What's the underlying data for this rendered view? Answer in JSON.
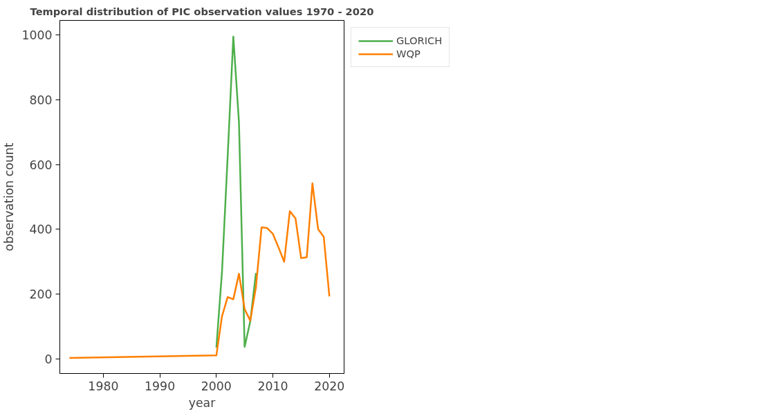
{
  "chart_data": {
    "type": "line",
    "title": "Temporal distribution of PIC observation values 1970 - 2020",
    "xlabel": "year",
    "ylabel": "observation count",
    "xlim": [
      1972.3,
      2022.6
    ],
    "ylim": [
      -45,
      1045
    ],
    "xticks": [
      1980,
      1990,
      2000,
      2010,
      2020
    ],
    "yticks": [
      0,
      200,
      400,
      600,
      800,
      1000
    ],
    "grid": false,
    "legend": "top right",
    "series": [
      {
        "name": "GLORICH",
        "color": "#4daf4a",
        "x": [
          2000,
          2001,
          2002,
          2003,
          2004,
          2005,
          2006,
          2007
        ],
        "values": [
          35,
          270,
          625,
          995,
          730,
          37,
          116,
          265
        ]
      },
      {
        "name": "WQP",
        "color": "#ff7f00",
        "x": [
          1974,
          2000,
          2001,
          2002,
          2003,
          2004,
          2005,
          2006,
          2007,
          2008,
          2009,
          2010,
          2011,
          2012,
          2013,
          2014,
          2015,
          2016,
          2017,
          2018,
          2019,
          2020
        ],
        "values": [
          3,
          11,
          132,
          191,
          184,
          263,
          154,
          118,
          221,
          406,
          404,
          386,
          344,
          300,
          456,
          434,
          311,
          314,
          542,
          401,
          377,
          193
        ]
      }
    ]
  }
}
